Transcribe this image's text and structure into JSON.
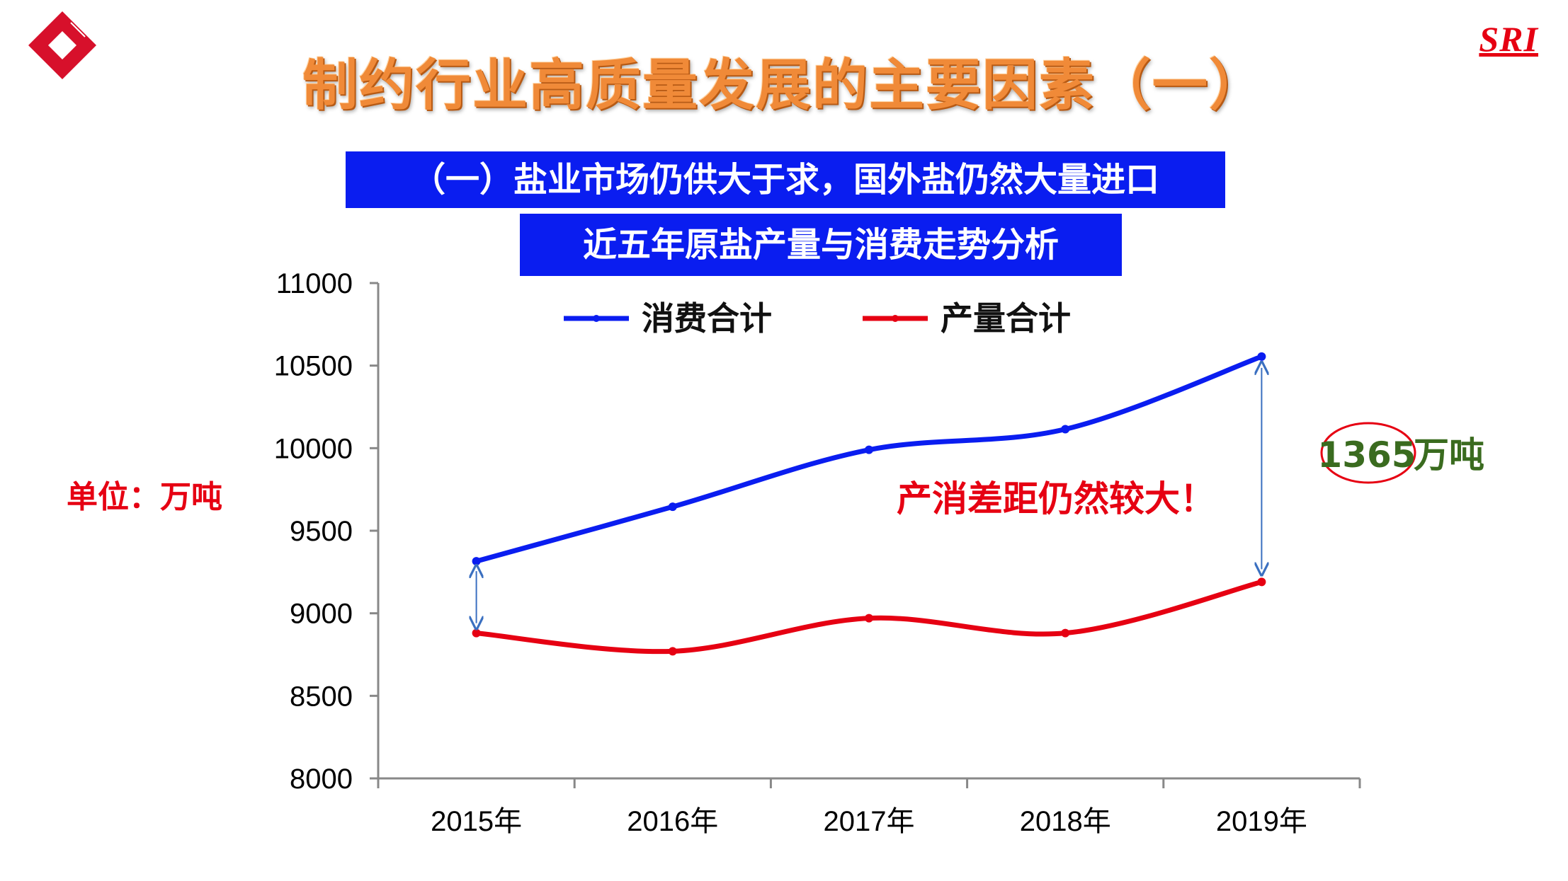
{
  "header": {
    "main_title": "制约行业高质量发展的主要因素（一）",
    "brand": "SRI",
    "logo_icon": "red-diamond-logo-icon"
  },
  "banners": {
    "subtitle": "（一）盐业市场仍供大于求，国外盐仍然大量进口",
    "chart_title": "近五年原盐产量与消费走势分析"
  },
  "unit_label": "单位：万吨",
  "annotations": {
    "gap_note": "产消差距仍然较大！",
    "gap_value": "1365",
    "gap_unit": "万吨"
  },
  "colors": {
    "consumption": "#0a1df0",
    "production": "#e60012",
    "banner": "#0a1df0",
    "title": "#f08a38",
    "arrow": "#3a6fc0"
  },
  "chart_data": {
    "type": "line",
    "title": "近五年原盐产量与消费走势分析",
    "categories": [
      "2015年",
      "2016年",
      "2017年",
      "2018年",
      "2019年"
    ],
    "series": [
      {
        "name": "消费合计",
        "values": [
          9315,
          9645,
          9990,
          10115,
          10555
        ]
      },
      {
        "name": "产量合计",
        "values": [
          8880,
          8770,
          8970,
          8880,
          9190
        ]
      }
    ],
    "ylim": [
      8000,
      11000
    ],
    "yticks": [
      "8000",
      "8500",
      "9000",
      "9500",
      "10000",
      "10500",
      "11000"
    ],
    "xlabel": "",
    "ylabel": "单位：万吨",
    "legend": "top",
    "grid": false
  }
}
